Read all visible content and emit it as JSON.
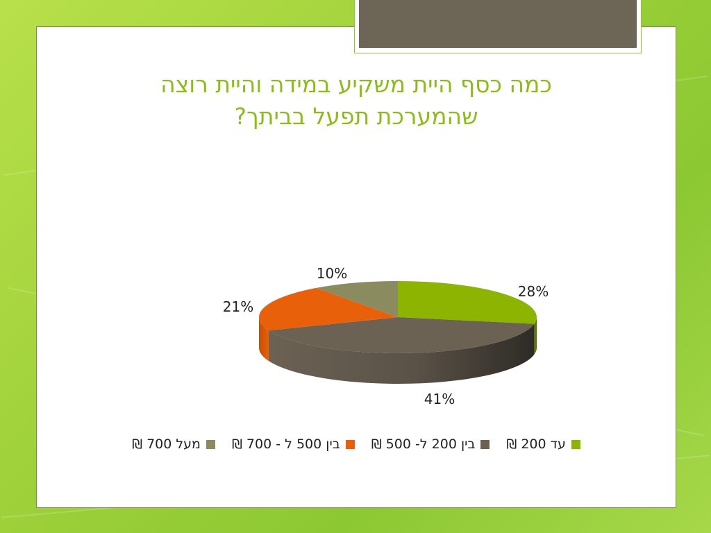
{
  "slide": {
    "title_line1": "כמה כסף היית משקיע במידה והיית רוצה",
    "title_line2": "שהמערכת תפעל בביתך?"
  },
  "chart_data": {
    "type": "pie",
    "style": "3d",
    "title": "כמה כסף היית משקיע במידה והיית רוצה שהמערכת תפעל בביתך?",
    "legend_position": "bottom",
    "categories": [
      "עד 200 ₪",
      "בין 200 ל- 500 ₪",
      "בין 500 ל - 700 ₪",
      "מעל 700 ₪"
    ],
    "values": [
      28,
      41,
      21,
      10
    ],
    "labels": [
      "28%",
      "41%",
      "21%",
      "10%"
    ],
    "colors": [
      "#8cb400",
      "#6b6254",
      "#e8600a",
      "#8a8c60"
    ]
  }
}
